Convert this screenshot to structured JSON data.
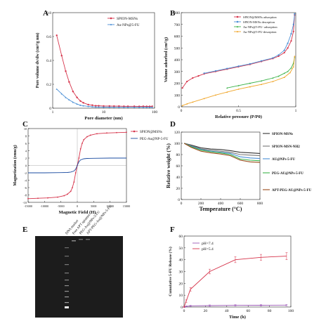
{
  "chart_data": [
    {
      "panel": "A",
      "type": "line",
      "xlabel": "Pore diameter (nm)",
      "ylabel": "Pore volume dv/dw (cm³/g nm)",
      "xscale": "log",
      "xlim": [
        1,
        100
      ],
      "ylim": [
        0,
        0.8
      ],
      "xticks": [
        {
          "v": 1,
          "t": "1"
        },
        {
          "v": 10,
          "t": "10"
        },
        {
          "v": 100,
          "t": "100"
        }
      ],
      "yticks": [
        {
          "v": 0,
          "t": "0"
        },
        {
          "v": 0.2,
          "t": "0.2"
        },
        {
          "v": 0.4,
          "t": "0.4"
        },
        {
          "v": 0.6,
          "t": "0.6"
        },
        {
          "v": 0.8,
          "t": "0.8"
        }
      ],
      "legend_position": "top-right",
      "series": [
        {
          "name": "SPION-MSNs",
          "color": "#d6334a",
          "marker": "circle",
          "x": [
            1.2,
            1.5,
            1.8,
            2.1,
            2.5,
            3,
            3.5,
            4,
            5,
            6,
            7,
            8,
            10,
            13,
            16,
            20,
            25,
            30,
            40,
            50,
            60,
            70,
            80,
            90
          ],
          "y": [
            0.61,
            0.44,
            0.31,
            0.22,
            0.14,
            0.09,
            0.06,
            0.045,
            0.03,
            0.025,
            0.02,
            0.02,
            0.018,
            0.018,
            0.017,
            0.017,
            0.016,
            0.016,
            0.016,
            0.015,
            0.016,
            0.015,
            0.015,
            0.016
          ]
        },
        {
          "name": "Au-NPs@5-FU",
          "color": "#4a8fd6",
          "marker": "triangle",
          "x": [
            1.2,
            1.5,
            1.8,
            2.1,
            2.5,
            3,
            3.5,
            4,
            5,
            6,
            7,
            8,
            10,
            13,
            16,
            20,
            25,
            30,
            40,
            50,
            60,
            70,
            80,
            90
          ],
          "y": [
            0.16,
            0.12,
            0.09,
            0.07,
            0.05,
            0.035,
            0.025,
            0.02,
            0.015,
            0.012,
            0.01,
            0.01,
            0.009,
            0.009,
            0.008,
            0.008,
            0.008,
            0.008,
            0.008,
            0.008,
            0.008,
            0.008,
            0.008,
            0.008
          ]
        }
      ]
    },
    {
      "panel": "B",
      "type": "line",
      "xlabel": "Relative pressure (P/P0)",
      "ylabel": "Volume adsorbed (cm³/g)",
      "xlim": [
        0,
        1
      ],
      "ylim": [
        0,
        800
      ],
      "xticks": [
        {
          "v": 0,
          "t": "0"
        },
        {
          "v": 0.5,
          "t": "0.5"
        },
        {
          "v": 1,
          "t": "1"
        }
      ],
      "yticks": [
        {
          "v": 0,
          "t": "0"
        },
        {
          "v": 100,
          "t": "100"
        },
        {
          "v": 200,
          "t": "200"
        },
        {
          "v": 300,
          "t": "300"
        },
        {
          "v": 400,
          "t": "400"
        },
        {
          "v": 500,
          "t": "500"
        },
        {
          "v": 600,
          "t": "600"
        },
        {
          "v": 700,
          "t": "700"
        },
        {
          "v": 800,
          "t": "800"
        }
      ],
      "legend_position": "top-right",
      "series": [
        {
          "name": "SPION@MSNs adsorption",
          "color": "#d6334a",
          "marker": "circle",
          "x": [
            0.01,
            0.05,
            0.1,
            0.15,
            0.2,
            0.3,
            0.4,
            0.5,
            0.6,
            0.7,
            0.8,
            0.85,
            0.9,
            0.93,
            0.96,
            0.98,
            0.99
          ],
          "y": [
            160,
            215,
            245,
            262,
            280,
            300,
            320,
            340,
            360,
            385,
            410,
            430,
            460,
            500,
            560,
            640,
            780
          ]
        },
        {
          "name": "SPION-MSNs desorption",
          "color": "#4a8fd6",
          "marker": "circle",
          "x": [
            0.99,
            0.98,
            0.96,
            0.93,
            0.9,
            0.85,
            0.8,
            0.7,
            0.6,
            0.5,
            0.4,
            0.3,
            0.2
          ],
          "y": [
            790,
            700,
            620,
            540,
            480,
            440,
            415,
            390,
            365,
            345,
            325,
            305,
            285
          ]
        },
        {
          "name": "Au-NPs@5-FU- adsorption",
          "color": "#3cb34a",
          "marker": "triangle",
          "x": [
            0.4,
            0.5,
            0.6,
            0.7,
            0.8,
            0.85,
            0.9,
            0.93,
            0.96,
            0.98,
            0.99
          ],
          "y": [
            160,
            180,
            200,
            220,
            245,
            260,
            285,
            300,
            330,
            370,
            420
          ]
        },
        {
          "name": "Au-NPs@5-FU-desorption",
          "color": "#f0a62a",
          "marker": "triangle",
          "x": [
            0.01,
            0.05,
            0.1,
            0.2,
            0.3,
            0.4,
            0.5,
            0.6,
            0.7,
            0.8,
            0.9,
            0.95,
            0.98,
            0.99
          ],
          "y": [
            10,
            25,
            40,
            70,
            100,
            125,
            150,
            170,
            190,
            215,
            250,
            290,
            340,
            430
          ]
        }
      ]
    },
    {
      "panel": "C",
      "type": "line",
      "xlabel": "Magnetic Field (H)",
      "ylabel": "Magnetization (emu/g)",
      "xlim": [
        -15000,
        15000
      ],
      "ylim": [
        -10,
        10
      ],
      "xticks": [
        {
          "v": -15000,
          "t": "-15000"
        },
        {
          "v": -10000,
          "t": "-10000"
        },
        {
          "v": -5000,
          "t": "-5000"
        },
        {
          "v": 0,
          "t": "0"
        },
        {
          "v": 5000,
          "t": "5000"
        },
        {
          "v": 10000,
          "t": "10000"
        },
        {
          "v": 15000,
          "t": "15000"
        }
      ],
      "yticks": [
        {
          "v": -10,
          "t": "-10"
        },
        {
          "v": -8,
          "t": "-8"
        },
        {
          "v": -6,
          "t": "-6"
        },
        {
          "v": -4,
          "t": "-4"
        },
        {
          "v": -2,
          "t": "-2"
        },
        {
          "v": 0,
          "t": "0"
        },
        {
          "v": 2,
          "t": "2"
        },
        {
          "v": 4,
          "t": "4"
        },
        {
          "v": 6,
          "t": "6"
        },
        {
          "v": 8,
          "t": "8"
        },
        {
          "v": 10,
          "t": "10"
        }
      ],
      "legend_position": "top-right",
      "series": [
        {
          "name": "SPION@MSNs",
          "color": "#d6334a",
          "marker": "circle",
          "x": [
            -15000,
            -12000,
            -9000,
            -6000,
            -4000,
            -3000,
            -2000,
            -1500,
            -1000,
            -500,
            0,
            500,
            1000,
            1500,
            2000,
            3000,
            4000,
            6000,
            9000,
            12000,
            15000
          ],
          "y": [
            -9.0,
            -8.9,
            -8.8,
            -8.6,
            -8.2,
            -7.8,
            -7.0,
            -6.0,
            -4.5,
            -2.0,
            0,
            2.0,
            4.5,
            6.0,
            7.0,
            7.8,
            8.2,
            8.6,
            8.8,
            8.9,
            9.0
          ]
        },
        {
          "name": "PEG-Au@NP-5-FU",
          "color": "#1a4ba0",
          "marker": "none",
          "x": [
            -15000,
            -10000,
            -5000,
            -3000,
            -2000,
            -1000,
            -500,
            0,
            500,
            1000,
            2000,
            3000,
            5000,
            10000,
            15000
          ],
          "y": [
            -2.0,
            -2.0,
            -1.95,
            -1.9,
            -1.8,
            -1.5,
            -1.0,
            0,
            1.0,
            1.5,
            1.8,
            1.9,
            1.95,
            2.0,
            2.0
          ]
        }
      ]
    },
    {
      "panel": "D",
      "type": "line",
      "xlabel": "Temperature (°C)",
      "ylabel": "Relative weight (%)",
      "xlim": [
        0,
        800
      ],
      "ylim": [
        0,
        120
      ],
      "xticks": [
        {
          "v": 0,
          "t": "0"
        },
        {
          "v": 200,
          "t": "200"
        },
        {
          "v": 400,
          "t": "400"
        },
        {
          "v": 600,
          "t": "600"
        },
        {
          "v": 800,
          "t": "800"
        }
      ],
      "yticks": [
        {
          "v": 0,
          "t": "0"
        },
        {
          "v": 20,
          "t": "20"
        },
        {
          "v": 40,
          "t": "40"
        },
        {
          "v": 60,
          "t": "60"
        },
        {
          "v": 80,
          "t": "80"
        },
        {
          "v": 100,
          "t": "100"
        },
        {
          "v": 120,
          "t": "120"
        }
      ],
      "legend_position": "right",
      "series": [
        {
          "name": "SPION-MSNs",
          "color": "#333333",
          "x": [
            30,
            100,
            200,
            300,
            400,
            500,
            600,
            700,
            800
          ],
          "y": [
            100,
            97,
            92,
            90,
            89,
            87,
            84,
            83,
            82
          ]
        },
        {
          "name": "SPION-MSN-NH2",
          "color": "#777777",
          "x": [
            30,
            100,
            200,
            300,
            400,
            500,
            600,
            700,
            800
          ],
          "y": [
            100,
            96,
            90,
            88,
            86,
            84,
            80,
            79,
            78
          ]
        },
        {
          "name": "AU@NPs-5-FU",
          "color": "#4a8fd6",
          "x": [
            30,
            100,
            200,
            300,
            400,
            500,
            600,
            700,
            800
          ],
          "y": [
            100,
            95,
            89,
            86,
            84,
            82,
            76,
            74,
            73
          ]
        },
        {
          "name": "PEG-AU@NPs-5-FU",
          "color": "#3cb34a",
          "x": [
            30,
            100,
            200,
            300,
            400,
            500,
            600,
            700,
            800
          ],
          "y": [
            100,
            94,
            88,
            85,
            83,
            80,
            72,
            70,
            69
          ]
        },
        {
          "name": "APT-PEG-AU@NPs-5-FU",
          "color": "#9a4a1a",
          "x": [
            30,
            100,
            200,
            300,
            400,
            500,
            600,
            700,
            800
          ],
          "y": [
            100,
            93,
            86,
            83,
            81,
            78,
            70,
            67,
            66
          ]
        }
      ]
    },
    {
      "panel": "E",
      "type": "gel",
      "lanes": [
        "DNA marker",
        "Free APT aptamer",
        "PEG-Au@NPs-5-FU",
        "APT-PEG-Au@NPs-5-FU"
      ],
      "background": "#1c1c1c"
    },
    {
      "panel": "F",
      "type": "line",
      "xlabel": "Time (h)",
      "ylabel": "Cumulative 5-FU Release (%)",
      "xlim": [
        0,
        100
      ],
      "ylim": [
        0,
        60
      ],
      "xticks": [
        {
          "v": 0,
          "t": "0"
        },
        {
          "v": 20,
          "t": "20"
        },
        {
          "v": 40,
          "t": "40"
        },
        {
          "v": 60,
          "t": "60"
        },
        {
          "v": 80,
          "t": "80"
        },
        {
          "v": 100,
          "t": "100"
        }
      ],
      "yticks": [
        {
          "v": 0,
          "t": "0"
        },
        {
          "v": 10,
          "t": "10"
        },
        {
          "v": 20,
          "t": "20"
        },
        {
          "v": 30,
          "t": "30"
        },
        {
          "v": 40,
          "t": "40"
        },
        {
          "v": 50,
          "t": "50"
        },
        {
          "v": 60,
          "t": "60"
        }
      ],
      "legend_position": "top-left",
      "series": [
        {
          "name": "pH=7.4",
          "color": "#9b59b6",
          "x": [
            0,
            2,
            6,
            24,
            48,
            72,
            96
          ],
          "y": [
            0,
            0.5,
            1.0,
            1.2,
            1.4,
            1.5,
            1.6
          ],
          "err": [
            0.3,
            0.5,
            0.5,
            0.6,
            0.6,
            0.6,
            0.6
          ]
        },
        {
          "name": "pH=5.4",
          "color": "#d6334a",
          "x": [
            0,
            2,
            6,
            24,
            48,
            72,
            96
          ],
          "y": [
            0,
            5,
            15,
            30,
            40,
            42,
            43
          ],
          "err": [
            0.5,
            1.0,
            1.5,
            2.0,
            2.5,
            2.5,
            3.0
          ]
        }
      ]
    }
  ]
}
